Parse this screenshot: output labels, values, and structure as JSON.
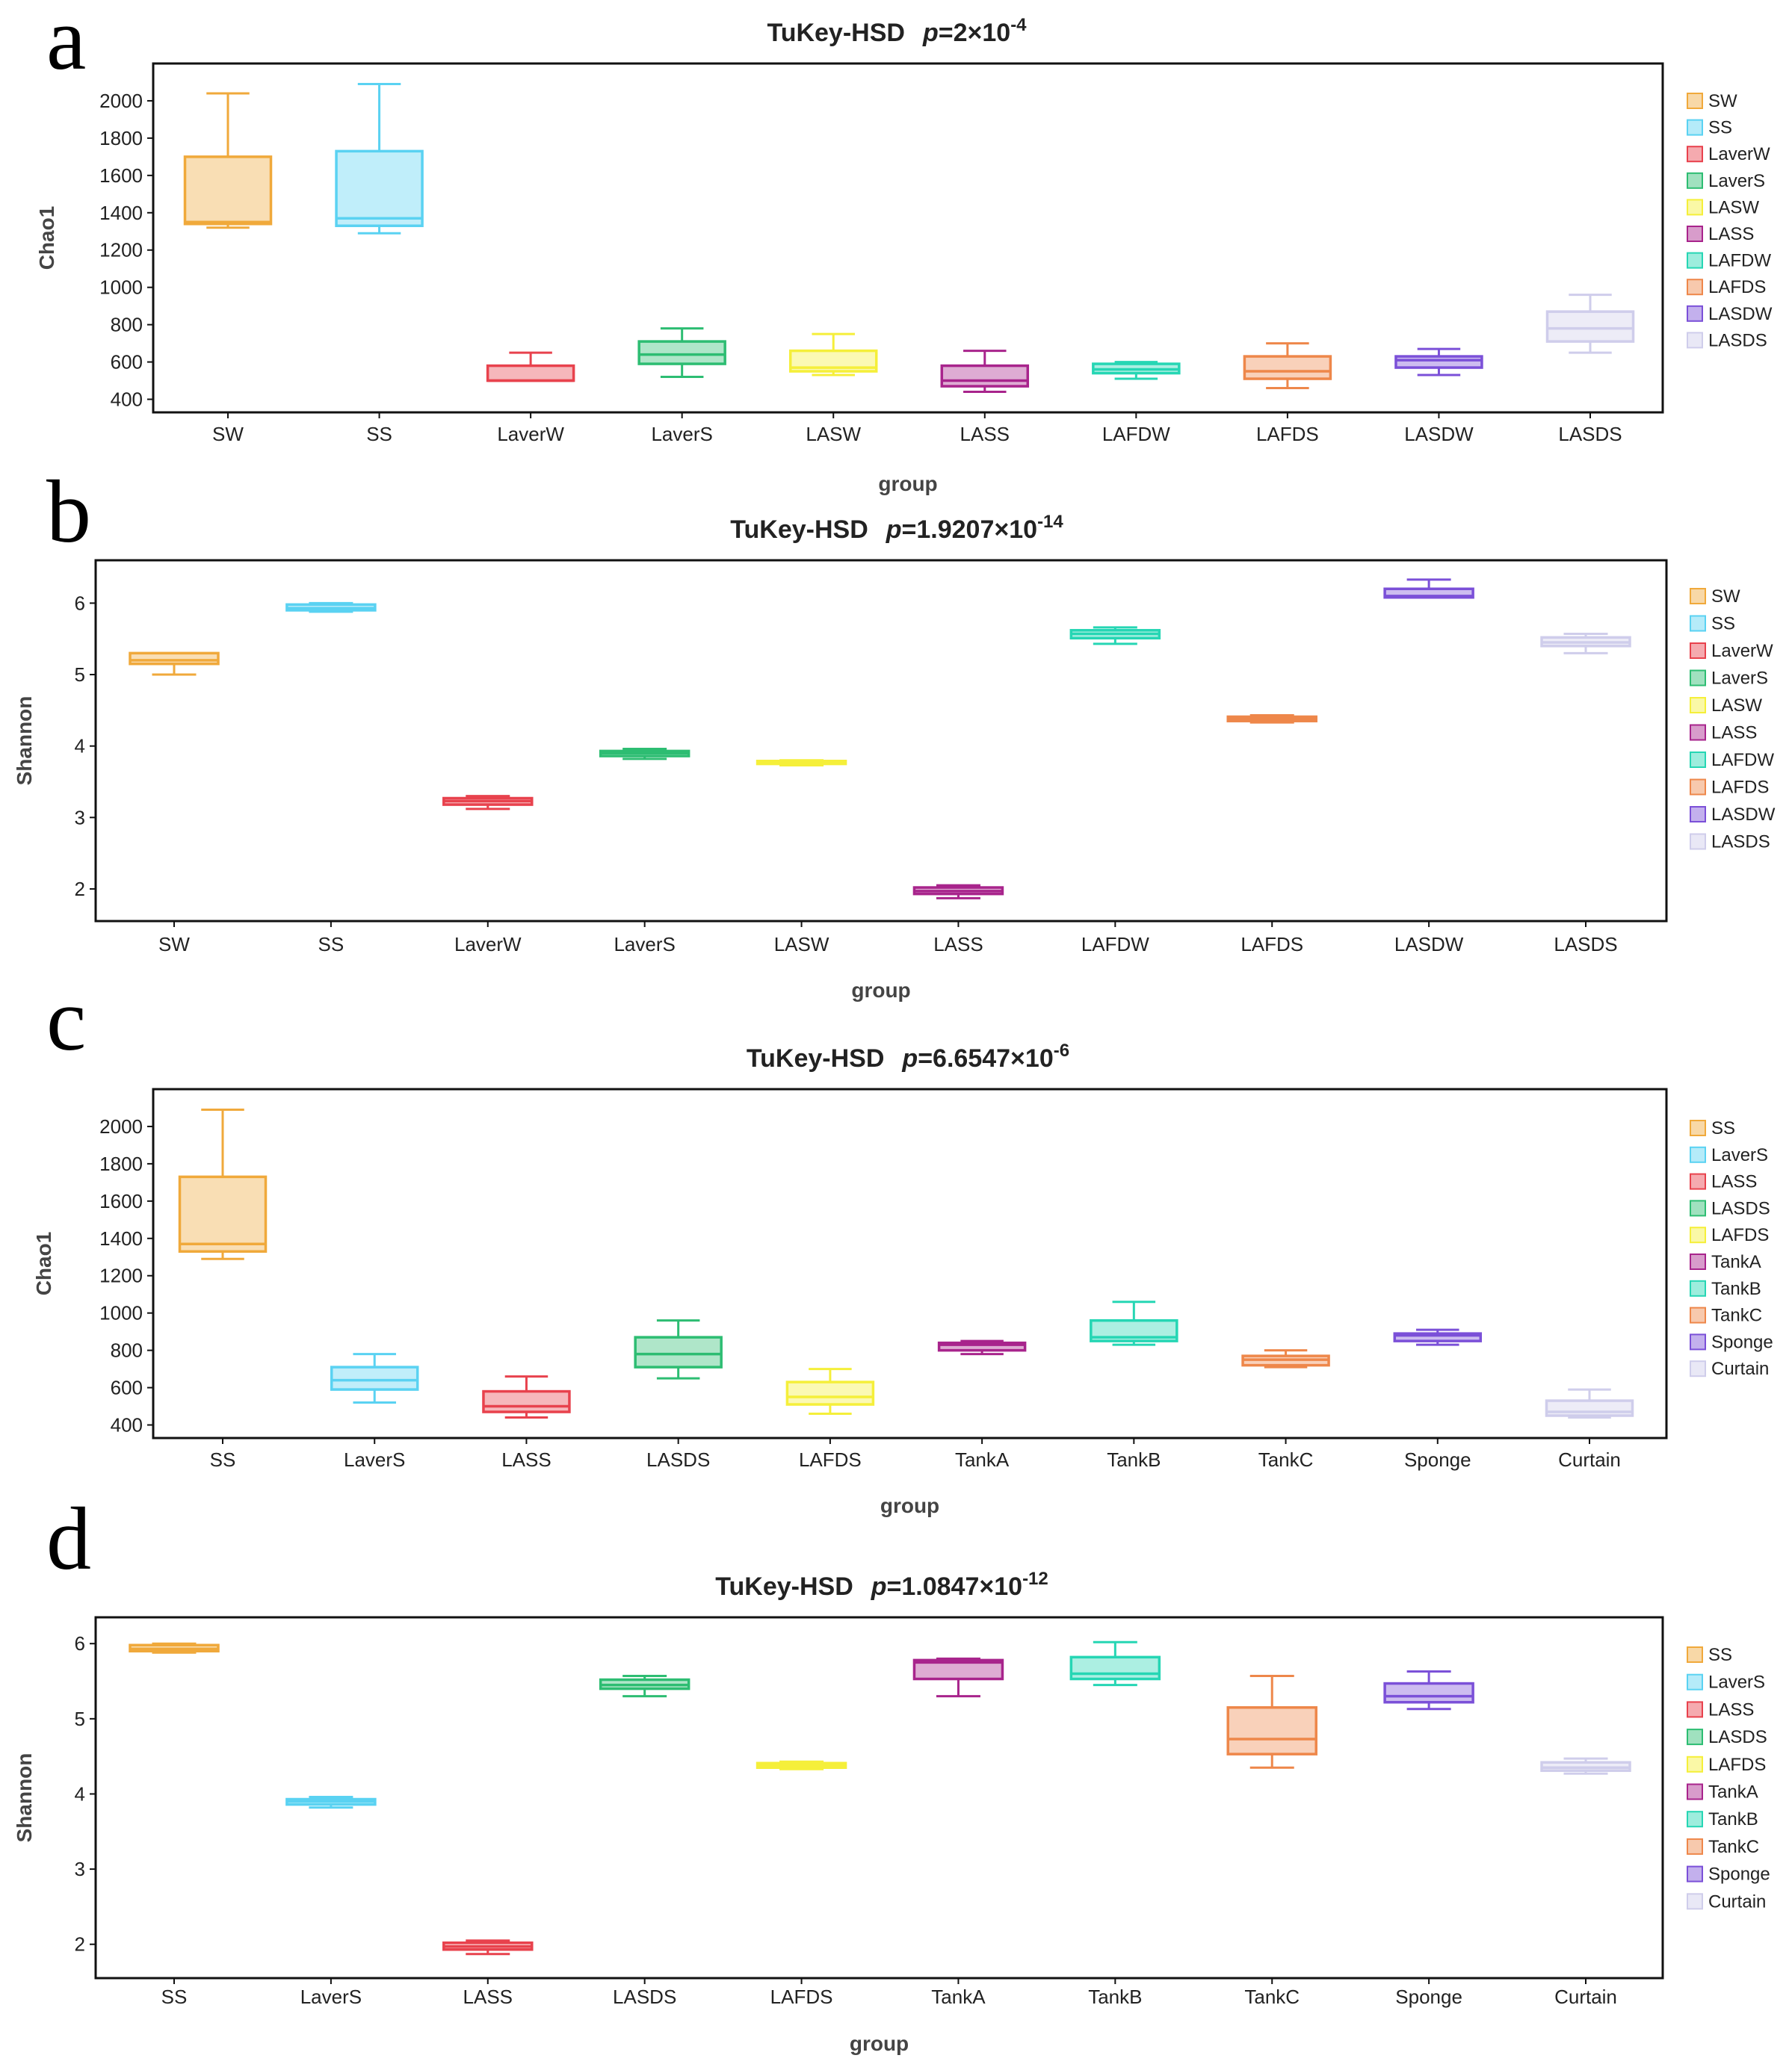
{
  "palette": [
    "#F0A93B",
    "#5AD2F2",
    "#E8424D",
    "#2DBD72",
    "#F5EF3A",
    "#A8248C",
    "#26D6B4",
    "#EE874A",
    "#7B50D8",
    "#CFCDEB"
  ],
  "chart_data": [
    {
      "type": "box",
      "panel": "a",
      "title": "TuKey-HSD",
      "p_text": "p",
      "p_value": "=2×10",
      "p_exp": "-4",
      "xlabel": "group",
      "ylabel": "Chao1",
      "ylim": [
        330,
        2200
      ],
      "yticks": [
        "400",
        "600",
        "800",
        "1000",
        "1200",
        "1400",
        "1600",
        "1800",
        "2000"
      ],
      "categories": [
        "SW",
        "SS",
        "LaverW",
        "LaverS",
        "LASW",
        "LASS",
        "LAFDW",
        "LAFDS",
        "LASDW",
        "LASDS"
      ],
      "legend": [
        "SW",
        "SS",
        "LaverW",
        "LaverS",
        "LASW",
        "LASS",
        "LAFDW",
        "LAFDS",
        "LASDW",
        "LASDS"
      ],
      "boxes": [
        {
          "min": 1320,
          "q1": 1340,
          "median": 1350,
          "q3": 1700,
          "max": 2040
        },
        {
          "min": 1290,
          "q1": 1330,
          "median": 1370,
          "q3": 1730,
          "max": 2090
        },
        {
          "min": 500,
          "q1": 500,
          "median": 500,
          "q3": 580,
          "max": 650
        },
        {
          "min": 520,
          "q1": 590,
          "median": 640,
          "q3": 710,
          "max": 780
        },
        {
          "min": 530,
          "q1": 550,
          "median": 570,
          "q3": 660,
          "max": 750
        },
        {
          "min": 440,
          "q1": 470,
          "median": 500,
          "q3": 580,
          "max": 660
        },
        {
          "min": 510,
          "q1": 540,
          "median": 560,
          "q3": 590,
          "max": 600
        },
        {
          "min": 460,
          "q1": 510,
          "median": 550,
          "q3": 630,
          "max": 700
        },
        {
          "min": 530,
          "q1": 570,
          "median": 610,
          "q3": 630,
          "max": 670
        },
        {
          "min": 650,
          "q1": 710,
          "median": 780,
          "q3": 870,
          "max": 960
        }
      ]
    },
    {
      "type": "box",
      "panel": "b",
      "title": "TuKey-HSD",
      "p_text": "p",
      "p_value": "=1.9207×10",
      "p_exp": "-14",
      "xlabel": "group",
      "ylabel": "Shannon",
      "ylim": [
        1.55,
        6.6
      ],
      "yticks": [
        "2",
        "3",
        "4",
        "5",
        "6"
      ],
      "categories": [
        "SW",
        "SS",
        "LaverW",
        "LaverS",
        "LASW",
        "LASS",
        "LAFDW",
        "LAFDS",
        "LASDW",
        "LASDS"
      ],
      "legend": [
        "SW",
        "SS",
        "LaverW",
        "LaverS",
        "LASW",
        "LASS",
        "LAFDW",
        "LAFDS",
        "LASDW",
        "LASDS"
      ],
      "boxes": [
        {
          "min": 5.0,
          "q1": 5.15,
          "median": 5.2,
          "q3": 5.3,
          "max": 5.3
        },
        {
          "min": 5.88,
          "q1": 5.9,
          "median": 5.93,
          "q3": 5.98,
          "max": 6.0
        },
        {
          "min": 3.12,
          "q1": 3.18,
          "median": 3.23,
          "q3": 3.27,
          "max": 3.3
        },
        {
          "min": 3.82,
          "q1": 3.86,
          "median": 3.9,
          "q3": 3.93,
          "max": 3.96
        },
        {
          "min": 3.73,
          "q1": 3.75,
          "median": 3.77,
          "q3": 3.79,
          "max": 3.8
        },
        {
          "min": 1.87,
          "q1": 1.93,
          "median": 1.97,
          "q3": 2.02,
          "max": 2.05
        },
        {
          "min": 5.43,
          "q1": 5.51,
          "median": 5.57,
          "q3": 5.62,
          "max": 5.66
        },
        {
          "min": 4.33,
          "q1": 4.35,
          "median": 4.38,
          "q3": 4.41,
          "max": 4.43
        },
        {
          "min": 6.08,
          "q1": 6.08,
          "median": 6.1,
          "q3": 6.2,
          "max": 6.33
        },
        {
          "min": 5.3,
          "q1": 5.4,
          "median": 5.45,
          "q3": 5.52,
          "max": 5.57
        }
      ]
    },
    {
      "type": "box",
      "panel": "c",
      "title": "TuKey-HSD",
      "p_text": "p",
      "p_value": "=6.6547×10",
      "p_exp": "-6",
      "xlabel": "group",
      "ylabel": "Chao1",
      "ylim": [
        330,
        2200
      ],
      "yticks": [
        "400",
        "600",
        "800",
        "1000",
        "1200",
        "1400",
        "1600",
        "1800",
        "2000"
      ],
      "categories": [
        "SS",
        "LaverS",
        "LASS",
        "LASDS",
        "LAFDS",
        "TankA",
        "TankB",
        "TankC",
        "Sponge",
        "Curtain"
      ],
      "legend": [
        "SS",
        "LaverS",
        "LASS",
        "LASDS",
        "LAFDS",
        "TankA",
        "TankB",
        "TankC",
        "Sponge",
        "Curtain"
      ],
      "boxes": [
        {
          "min": 1290,
          "q1": 1330,
          "median": 1370,
          "q3": 1730,
          "max": 2090
        },
        {
          "min": 520,
          "q1": 590,
          "median": 640,
          "q3": 710,
          "max": 780
        },
        {
          "min": 440,
          "q1": 470,
          "median": 500,
          "q3": 580,
          "max": 660
        },
        {
          "min": 650,
          "q1": 710,
          "median": 780,
          "q3": 870,
          "max": 960
        },
        {
          "min": 460,
          "q1": 510,
          "median": 550,
          "q3": 630,
          "max": 700
        },
        {
          "min": 780,
          "q1": 800,
          "median": 830,
          "q3": 840,
          "max": 850
        },
        {
          "min": 830,
          "q1": 850,
          "median": 870,
          "q3": 960,
          "max": 1060
        },
        {
          "min": 710,
          "q1": 720,
          "median": 750,
          "q3": 770,
          "max": 800
        },
        {
          "min": 830,
          "q1": 850,
          "median": 880,
          "q3": 890,
          "max": 910
        },
        {
          "min": 440,
          "q1": 450,
          "median": 470,
          "q3": 530,
          "max": 590
        }
      ]
    },
    {
      "type": "box",
      "panel": "d",
      "title": "TuKey-HSD",
      "p_text": "p",
      "p_value": "=1.0847×10",
      "p_exp": "-12",
      "xlabel": "group",
      "ylabel": "Shannon",
      "ylim": [
        1.55,
        6.35
      ],
      "yticks": [
        "2",
        "3",
        "4",
        "5",
        "6"
      ],
      "categories": [
        "SS",
        "LaverS",
        "LASS",
        "LASDS",
        "LAFDS",
        "TankA",
        "TankB",
        "TankC",
        "Sponge",
        "Curtain"
      ],
      "legend": [
        "SS",
        "LaverS",
        "LASS",
        "LASDS",
        "LAFDS",
        "TankA",
        "TankB",
        "TankC",
        "Sponge",
        "Curtain"
      ],
      "boxes": [
        {
          "min": 5.88,
          "q1": 5.9,
          "median": 5.93,
          "q3": 5.98,
          "max": 6.0
        },
        {
          "min": 3.82,
          "q1": 3.86,
          "median": 3.9,
          "q3": 3.93,
          "max": 3.96
        },
        {
          "min": 1.87,
          "q1": 1.93,
          "median": 1.97,
          "q3": 2.02,
          "max": 2.05
        },
        {
          "min": 5.3,
          "q1": 5.4,
          "median": 5.45,
          "q3": 5.52,
          "max": 5.57
        },
        {
          "min": 4.33,
          "q1": 4.35,
          "median": 4.38,
          "q3": 4.41,
          "max": 4.43
        },
        {
          "min": 5.3,
          "q1": 5.53,
          "median": 5.75,
          "q3": 5.78,
          "max": 5.8
        },
        {
          "min": 5.45,
          "q1": 5.53,
          "median": 5.6,
          "q3": 5.82,
          "max": 6.02
        },
        {
          "min": 4.35,
          "q1": 4.53,
          "median": 4.73,
          "q3": 5.15,
          "max": 5.57
        },
        {
          "min": 5.13,
          "q1": 5.22,
          "median": 5.3,
          "q3": 5.47,
          "max": 5.63
        },
        {
          "min": 4.27,
          "q1": 4.31,
          "median": 4.35,
          "q3": 4.42,
          "max": 4.47
        }
      ]
    }
  ]
}
